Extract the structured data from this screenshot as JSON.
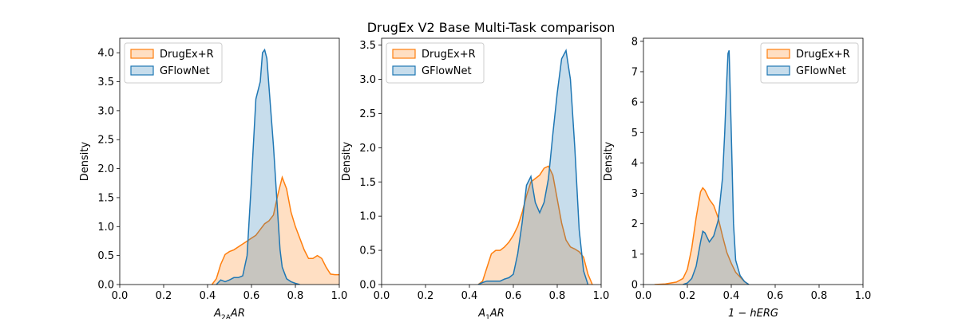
{
  "chart_data": {
    "type": "kde",
    "title": "DrugEx V2 Base Multi-Task comparison",
    "colors": {
      "DrugEx+R": "#ff7f0e",
      "GFlowNet": "#1f77b4"
    },
    "panels": [
      {
        "xlabel": "$A_{2A}AR$",
        "xlabel_main": "A",
        "xlabel_sub": "2A",
        "xlabel_tail": "AR",
        "ylabel": "Density",
        "xlim": [
          0,
          1.0
        ],
        "ylim": [
          0,
          4.25
        ],
        "xticks": [
          "0.0",
          "0.2",
          "0.4",
          "0.6",
          "0.8",
          "1.0"
        ],
        "yticks": [
          "0.0",
          "0.5",
          "1.0",
          "1.5",
          "2.0",
          "2.5",
          "3.0",
          "3.5",
          "4.0"
        ],
        "legend_loc": "upper-left",
        "series": [
          {
            "name": "DrugEx+R",
            "x": [
              0.42,
              0.44,
              0.46,
              0.48,
              0.5,
              0.52,
              0.54,
              0.56,
              0.58,
              0.6,
              0.62,
              0.64,
              0.66,
              0.68,
              0.7,
              0.72,
              0.74,
              0.76,
              0.78,
              0.8,
              0.82,
              0.84,
              0.86,
              0.88,
              0.9,
              0.92,
              0.94,
              0.96,
              0.98,
              1.0
            ],
            "y": [
              0.0,
              0.1,
              0.35,
              0.52,
              0.57,
              0.6,
              0.65,
              0.7,
              0.75,
              0.8,
              0.85,
              0.95,
              1.05,
              1.1,
              1.2,
              1.55,
              1.85,
              1.65,
              1.25,
              1.0,
              0.8,
              0.6,
              0.45,
              0.45,
              0.5,
              0.45,
              0.3,
              0.18,
              0.17,
              0.17
            ]
          },
          {
            "name": "GFlowNet",
            "x": [
              0.44,
              0.46,
              0.48,
              0.5,
              0.52,
              0.54,
              0.56,
              0.58,
              0.6,
              0.62,
              0.64,
              0.65,
              0.66,
              0.67,
              0.68,
              0.7,
              0.72,
              0.73,
              0.74,
              0.76,
              0.78,
              0.8,
              0.82
            ],
            "y": [
              0.0,
              0.08,
              0.05,
              0.08,
              0.12,
              0.12,
              0.15,
              0.5,
              1.8,
              3.2,
              3.5,
              4.0,
              4.05,
              3.9,
              3.4,
              2.4,
              1.2,
              0.6,
              0.3,
              0.1,
              0.05,
              0.02,
              0.0
            ]
          }
        ]
      },
      {
        "xlabel": "$A_1AR$",
        "xlabel_main": "A",
        "xlabel_sub": "1",
        "xlabel_tail": "AR",
        "ylabel": "Density",
        "xlim": [
          0,
          1.0
        ],
        "ylim": [
          0,
          3.6
        ],
        "xticks": [
          "0.0",
          "0.2",
          "0.4",
          "0.6",
          "0.8",
          "1.0"
        ],
        "yticks": [
          "0.0",
          "0.5",
          "1.0",
          "1.5",
          "2.0",
          "2.5",
          "3.0",
          "3.5"
        ],
        "legend_loc": "upper-left",
        "series": [
          {
            "name": "DrugEx+R",
            "x": [
              0.44,
              0.46,
              0.48,
              0.5,
              0.52,
              0.54,
              0.56,
              0.58,
              0.6,
              0.62,
              0.64,
              0.66,
              0.68,
              0.7,
              0.72,
              0.74,
              0.76,
              0.78,
              0.8,
              0.82,
              0.84,
              0.86,
              0.88,
              0.9,
              0.92,
              0.94,
              0.96
            ],
            "y": [
              0.0,
              0.05,
              0.25,
              0.45,
              0.5,
              0.5,
              0.55,
              0.62,
              0.72,
              0.85,
              1.05,
              1.3,
              1.5,
              1.55,
              1.6,
              1.7,
              1.73,
              1.6,
              1.25,
              0.9,
              0.65,
              0.55,
              0.52,
              0.48,
              0.4,
              0.15,
              0.0
            ]
          },
          {
            "name": "GFlowNet",
            "x": [
              0.44,
              0.46,
              0.48,
              0.5,
              0.52,
              0.54,
              0.56,
              0.58,
              0.6,
              0.62,
              0.64,
              0.66,
              0.68,
              0.7,
              0.72,
              0.74,
              0.76,
              0.78,
              0.8,
              0.82,
              0.84,
              0.86,
              0.88,
              0.9,
              0.92,
              0.94
            ],
            "y": [
              0.0,
              0.03,
              0.05,
              0.05,
              0.05,
              0.05,
              0.08,
              0.1,
              0.15,
              0.45,
              0.9,
              1.45,
              1.58,
              1.2,
              1.05,
              1.2,
              1.55,
              2.2,
              2.8,
              3.3,
              3.42,
              3.0,
              2.0,
              0.8,
              0.2,
              0.0
            ]
          }
        ]
      },
      {
        "xlabel": "$1 - hERG$",
        "xlabel_main": "1 − hERG",
        "xlabel_sub": "",
        "xlabel_tail": "",
        "ylabel": "Density",
        "xlim": [
          0,
          1.0
        ],
        "ylim": [
          0,
          8.1
        ],
        "xticks": [
          "0.0",
          "0.2",
          "0.4",
          "0.6",
          "0.8",
          "1.0"
        ],
        "yticks": [
          "0",
          "1",
          "2",
          "3",
          "4",
          "5",
          "6",
          "7",
          "8"
        ],
        "legend_loc": "upper-right",
        "series": [
          {
            "name": "DrugEx+R",
            "x": [
              0.05,
              0.1,
              0.15,
              0.18,
              0.2,
              0.22,
              0.24,
              0.26,
              0.27,
              0.28,
              0.3,
              0.32,
              0.34,
              0.36,
              0.38,
              0.4,
              0.42,
              0.44,
              0.46,
              0.48
            ],
            "y": [
              0.0,
              0.02,
              0.08,
              0.2,
              0.5,
              1.2,
              2.2,
              3.05,
              3.18,
              3.1,
              2.8,
              2.6,
              2.2,
              1.6,
              1.05,
              0.7,
              0.4,
              0.25,
              0.1,
              0.0
            ]
          },
          {
            "name": "GFlowNet",
            "x": [
              0.18,
              0.2,
              0.22,
              0.24,
              0.26,
              0.27,
              0.28,
              0.3,
              0.32,
              0.34,
              0.36,
              0.37,
              0.38,
              0.385,
              0.39,
              0.4,
              0.41,
              0.42,
              0.44,
              0.46,
              0.48
            ],
            "y": [
              0.0,
              0.05,
              0.2,
              0.6,
              1.4,
              1.75,
              1.7,
              1.4,
              1.6,
              2.1,
              3.5,
              5.0,
              6.8,
              7.6,
              7.7,
              5.0,
              2.0,
              0.8,
              0.3,
              0.1,
              0.0
            ]
          }
        ]
      }
    ]
  }
}
